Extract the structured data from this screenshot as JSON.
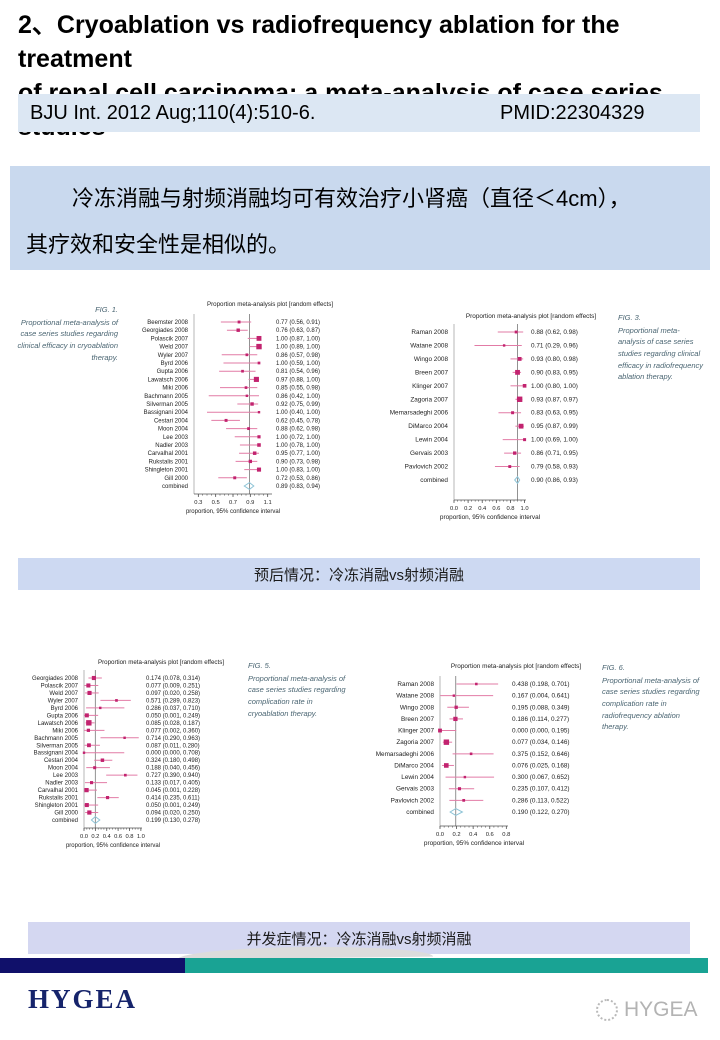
{
  "page": {
    "title_line1": "2、Cryoablation vs radiofrequency ablation for the treatment",
    "title_line2": "of renal cell carcinoma: a meta-analysis of case series studies"
  },
  "citation": {
    "journal": "BJU Int. 2012 Aug;110(4):510-6.",
    "pmid": "PMID:22304329"
  },
  "summary": {
    "line1": "冷冻消融与射频消融均可有效治疗小肾癌（直径＜4cm），",
    "line2": "其疗效和安全性是相似的。"
  },
  "banners": {
    "prognosis": "预后情况：冷冻消融vs射频消融",
    "complications": "并发症情况：冷冻消融vs射频消融"
  },
  "footer": {
    "brand": "HYGEA",
    "watermark": "HYGEA"
  },
  "colors": {
    "marker": "#c2236f",
    "ci_line": "#e27ba6",
    "diamond": "#8cc3d6",
    "axis": "#555555",
    "caption_text": "#4a6572",
    "citation_bg": "#dce7f3",
    "summary_bg": "#c9d9ee",
    "banner1_bg": "#cdd9f2",
    "banner2_bg": "#d4d7f1",
    "footer_navy": "#10106a",
    "footer_teal": "#19a394",
    "brand_navy": "#16246b"
  },
  "chart_data": [
    {
      "type": "scatter",
      "subtype": "forest",
      "fig_label": "FIG. 1.",
      "caption": "Proportional meta-analysis of case series studies regarding clinical efficacy in cryoablation therapy.",
      "caption_side": "left",
      "title": "Proportion meta-analysis plot [random effects]",
      "xlabel": "proportion, 95% confidence interval",
      "xlim": [
        0.25,
        1.15
      ],
      "xticks": [
        0.3,
        0.5,
        0.7,
        0.9,
        1.1
      ],
      "decimals": 2,
      "ref_line": 0.89,
      "rows": [
        {
          "study": "Beemster 2008",
          "est": 0.77,
          "lo": 0.56,
          "hi": 0.91
        },
        {
          "study": "Georgiades 2008",
          "est": 0.76,
          "lo": 0.63,
          "hi": 0.87
        },
        {
          "study": "Polascik 2007",
          "est": 1.0,
          "lo": 0.87,
          "hi": 1.0
        },
        {
          "study": "Weld 2007",
          "est": 1.0,
          "lo": 0.89,
          "hi": 1.0
        },
        {
          "study": "Wyler 2007",
          "est": 0.86,
          "lo": 0.57,
          "hi": 0.98
        },
        {
          "study": "Byrd 2006",
          "est": 1.0,
          "lo": 0.59,
          "hi": 1.0
        },
        {
          "study": "Gupta 2006",
          "est": 0.81,
          "lo": 0.54,
          "hi": 0.96
        },
        {
          "study": "Lawatsch 2006",
          "est": 0.97,
          "lo": 0.88,
          "hi": 1.0
        },
        {
          "study": "Miki 2006",
          "est": 0.85,
          "lo": 0.55,
          "hi": 0.98
        },
        {
          "study": "Bachmann 2005",
          "est": 0.86,
          "lo": 0.42,
          "hi": 1.0
        },
        {
          "study": "Silverman 2005",
          "est": 0.92,
          "lo": 0.75,
          "hi": 0.99
        },
        {
          "study": "Bassignani 2004",
          "est": 1.0,
          "lo": 0.4,
          "hi": 1.0
        },
        {
          "study": "Cestari 2004",
          "est": 0.62,
          "lo": 0.45,
          "hi": 0.78
        },
        {
          "study": "Moon 2004",
          "est": 0.88,
          "lo": 0.62,
          "hi": 0.98
        },
        {
          "study": "Lee 2003",
          "est": 1.0,
          "lo": 0.72,
          "hi": 1.0
        },
        {
          "study": "Nadler 2003",
          "est": 1.0,
          "lo": 0.78,
          "hi": 1.0
        },
        {
          "study": "Carvalhal 2001",
          "est": 0.95,
          "lo": 0.77,
          "hi": 1.0
        },
        {
          "study": "Rukstalis 2001",
          "est": 0.9,
          "lo": 0.73,
          "hi": 0.98
        },
        {
          "study": "Shingleton 2001",
          "est": 1.0,
          "lo": 0.83,
          "hi": 1.0
        },
        {
          "study": "Gill 2000",
          "est": 0.72,
          "lo": 0.53,
          "hi": 0.86
        },
        {
          "study": "combined",
          "est": 0.89,
          "lo": 0.83,
          "hi": 0.94
        }
      ]
    },
    {
      "type": "scatter",
      "subtype": "forest",
      "fig_label": "FIG. 3.",
      "caption": "Proportional meta-analysis of case series studies regarding clinical efficacy in radiofrequency ablation therapy.",
      "caption_side": "right",
      "title": "Proportion meta-analysis plot [random effects]",
      "xlabel": "proportion, 95% confidence interval",
      "xlim": [
        0.0,
        1.02
      ],
      "xticks": [
        0.0,
        0.2,
        0.4,
        0.6,
        0.8,
        1.0
      ],
      "decimals": 2,
      "ref_line": 0.9,
      "rows": [
        {
          "study": "Raman 2008",
          "est": 0.88,
          "lo": 0.62,
          "hi": 0.98
        },
        {
          "study": "Watane 2008",
          "est": 0.71,
          "lo": 0.29,
          "hi": 0.96
        },
        {
          "study": "Wingo 2008",
          "est": 0.93,
          "lo": 0.8,
          "hi": 0.98
        },
        {
          "study": "Breen 2007",
          "est": 0.9,
          "lo": 0.83,
          "hi": 0.95
        },
        {
          "study": "Klinger 2007",
          "est": 1.0,
          "lo": 0.8,
          "hi": 1.0
        },
        {
          "study": "Zagoria 2007",
          "est": 0.93,
          "lo": 0.87,
          "hi": 0.97
        },
        {
          "study": "Memarsadeghi 2006",
          "est": 0.83,
          "lo": 0.63,
          "hi": 0.95
        },
        {
          "study": "DiMarco 2004",
          "est": 0.95,
          "lo": 0.87,
          "hi": 0.99
        },
        {
          "study": "Lewin 2004",
          "est": 1.0,
          "lo": 0.69,
          "hi": 1.0
        },
        {
          "study": "Gervais 2003",
          "est": 0.86,
          "lo": 0.71,
          "hi": 0.95
        },
        {
          "study": "Pavlovich 2002",
          "est": 0.79,
          "lo": 0.58,
          "hi": 0.93
        },
        {
          "study": "combined",
          "est": 0.9,
          "lo": 0.86,
          "hi": 0.93
        }
      ]
    },
    {
      "type": "scatter",
      "subtype": "forest",
      "fig_label": "FIG. 5.",
      "caption": "Proportional meta-analysis of case series studies regarding complication rate in cryoablation therapy.",
      "caption_side": "right",
      "title": "Proportion meta-analysis plot [random effects]",
      "xlabel": "proportion, 95% confidence interval",
      "xlim": [
        0.0,
        1.02
      ],
      "xticks": [
        0.0,
        0.2,
        0.4,
        0.6,
        0.8,
        1.0
      ],
      "decimals": 3,
      "ref_line": 0.199,
      "rows": [
        {
          "study": "Georgiades 2008",
          "est": 0.174,
          "lo": 0.078,
          "hi": 0.314
        },
        {
          "study": "Polascik 2007",
          "est": 0.077,
          "lo": 0.009,
          "hi": 0.251
        },
        {
          "study": "Weld 2007",
          "est": 0.097,
          "lo": 0.02,
          "hi": 0.258
        },
        {
          "study": "Wyler 2007",
          "est": 0.571,
          "lo": 0.289,
          "hi": 0.823
        },
        {
          "study": "Byrd 2006",
          "est": 0.286,
          "lo": 0.037,
          "hi": 0.71
        },
        {
          "study": "Gupta 2006",
          "est": 0.05,
          "lo": 0.001,
          "hi": 0.249
        },
        {
          "study": "Lawatsch 2006",
          "est": 0.085,
          "lo": 0.028,
          "hi": 0.187
        },
        {
          "study": "Miki 2006",
          "est": 0.077,
          "lo": 0.002,
          "hi": 0.36
        },
        {
          "study": "Bachmann 2005",
          "est": 0.714,
          "lo": 0.29,
          "hi": 0.963
        },
        {
          "study": "Silverman 2005",
          "est": 0.087,
          "lo": 0.011,
          "hi": 0.28
        },
        {
          "study": "Bassignani 2004",
          "est": 0.0,
          "lo": 0.0,
          "hi": 0.708
        },
        {
          "study": "Cestari 2004",
          "est": 0.324,
          "lo": 0.18,
          "hi": 0.498
        },
        {
          "study": "Moon 2004",
          "est": 0.188,
          "lo": 0.04,
          "hi": 0.456
        },
        {
          "study": "Lee 2003",
          "est": 0.727,
          "lo": 0.39,
          "hi": 0.94
        },
        {
          "study": "Nadler 2003",
          "est": 0.133,
          "lo": 0.017,
          "hi": 0.405
        },
        {
          "study": "Carvalhal 2001",
          "est": 0.045,
          "lo": 0.001,
          "hi": 0.228
        },
        {
          "study": "Rukstalis 2001",
          "est": 0.414,
          "lo": 0.235,
          "hi": 0.611
        },
        {
          "study": "Shingleton 2001",
          "est": 0.05,
          "lo": 0.001,
          "hi": 0.249
        },
        {
          "study": "Gill 2000",
          "est": 0.094,
          "lo": 0.02,
          "hi": 0.25
        },
        {
          "study": "combined",
          "est": 0.199,
          "lo": 0.13,
          "hi": 0.278
        }
      ]
    },
    {
      "type": "scatter",
      "subtype": "forest",
      "fig_label": "FIG. 6.",
      "caption": "Proportional meta-analysis of case series studies regarding complication rate in radiofrequency ablation therapy.",
      "caption_side": "right",
      "title": "Proportion meta-analysis plot [random effects]",
      "xlabel": "proportion, 95% confidence interval",
      "xlim": [
        0.0,
        0.82
      ],
      "xticks": [
        0.0,
        0.2,
        0.4,
        0.6,
        0.8
      ],
      "decimals": 3,
      "ref_line": 0.19,
      "rows": [
        {
          "study": "Raman 2008",
          "est": 0.438,
          "lo": 0.198,
          "hi": 0.701
        },
        {
          "study": "Watane 2008",
          "est": 0.167,
          "lo": 0.004,
          "hi": 0.641
        },
        {
          "study": "Wingo 2008",
          "est": 0.195,
          "lo": 0.088,
          "hi": 0.349
        },
        {
          "study": "Breen 2007",
          "est": 0.186,
          "lo": 0.114,
          "hi": 0.277
        },
        {
          "study": "Klinger 2007",
          "est": 0.0,
          "lo": 0.0,
          "hi": 0.195
        },
        {
          "study": "Zagoria 2007",
          "est": 0.077,
          "lo": 0.034,
          "hi": 0.146
        },
        {
          "study": "Memarsadeghi 2006",
          "est": 0.375,
          "lo": 0.152,
          "hi": 0.646
        },
        {
          "study": "DiMarco 2004",
          "est": 0.076,
          "lo": 0.025,
          "hi": 0.168
        },
        {
          "study": "Lewin 2004",
          "est": 0.3,
          "lo": 0.067,
          "hi": 0.652
        },
        {
          "study": "Gervais 2003",
          "est": 0.235,
          "lo": 0.107,
          "hi": 0.412
        },
        {
          "study": "Pavlovich 2002",
          "est": 0.286,
          "lo": 0.113,
          "hi": 0.522
        },
        {
          "study": "combined",
          "est": 0.19,
          "lo": 0.122,
          "hi": 0.27
        }
      ]
    }
  ]
}
